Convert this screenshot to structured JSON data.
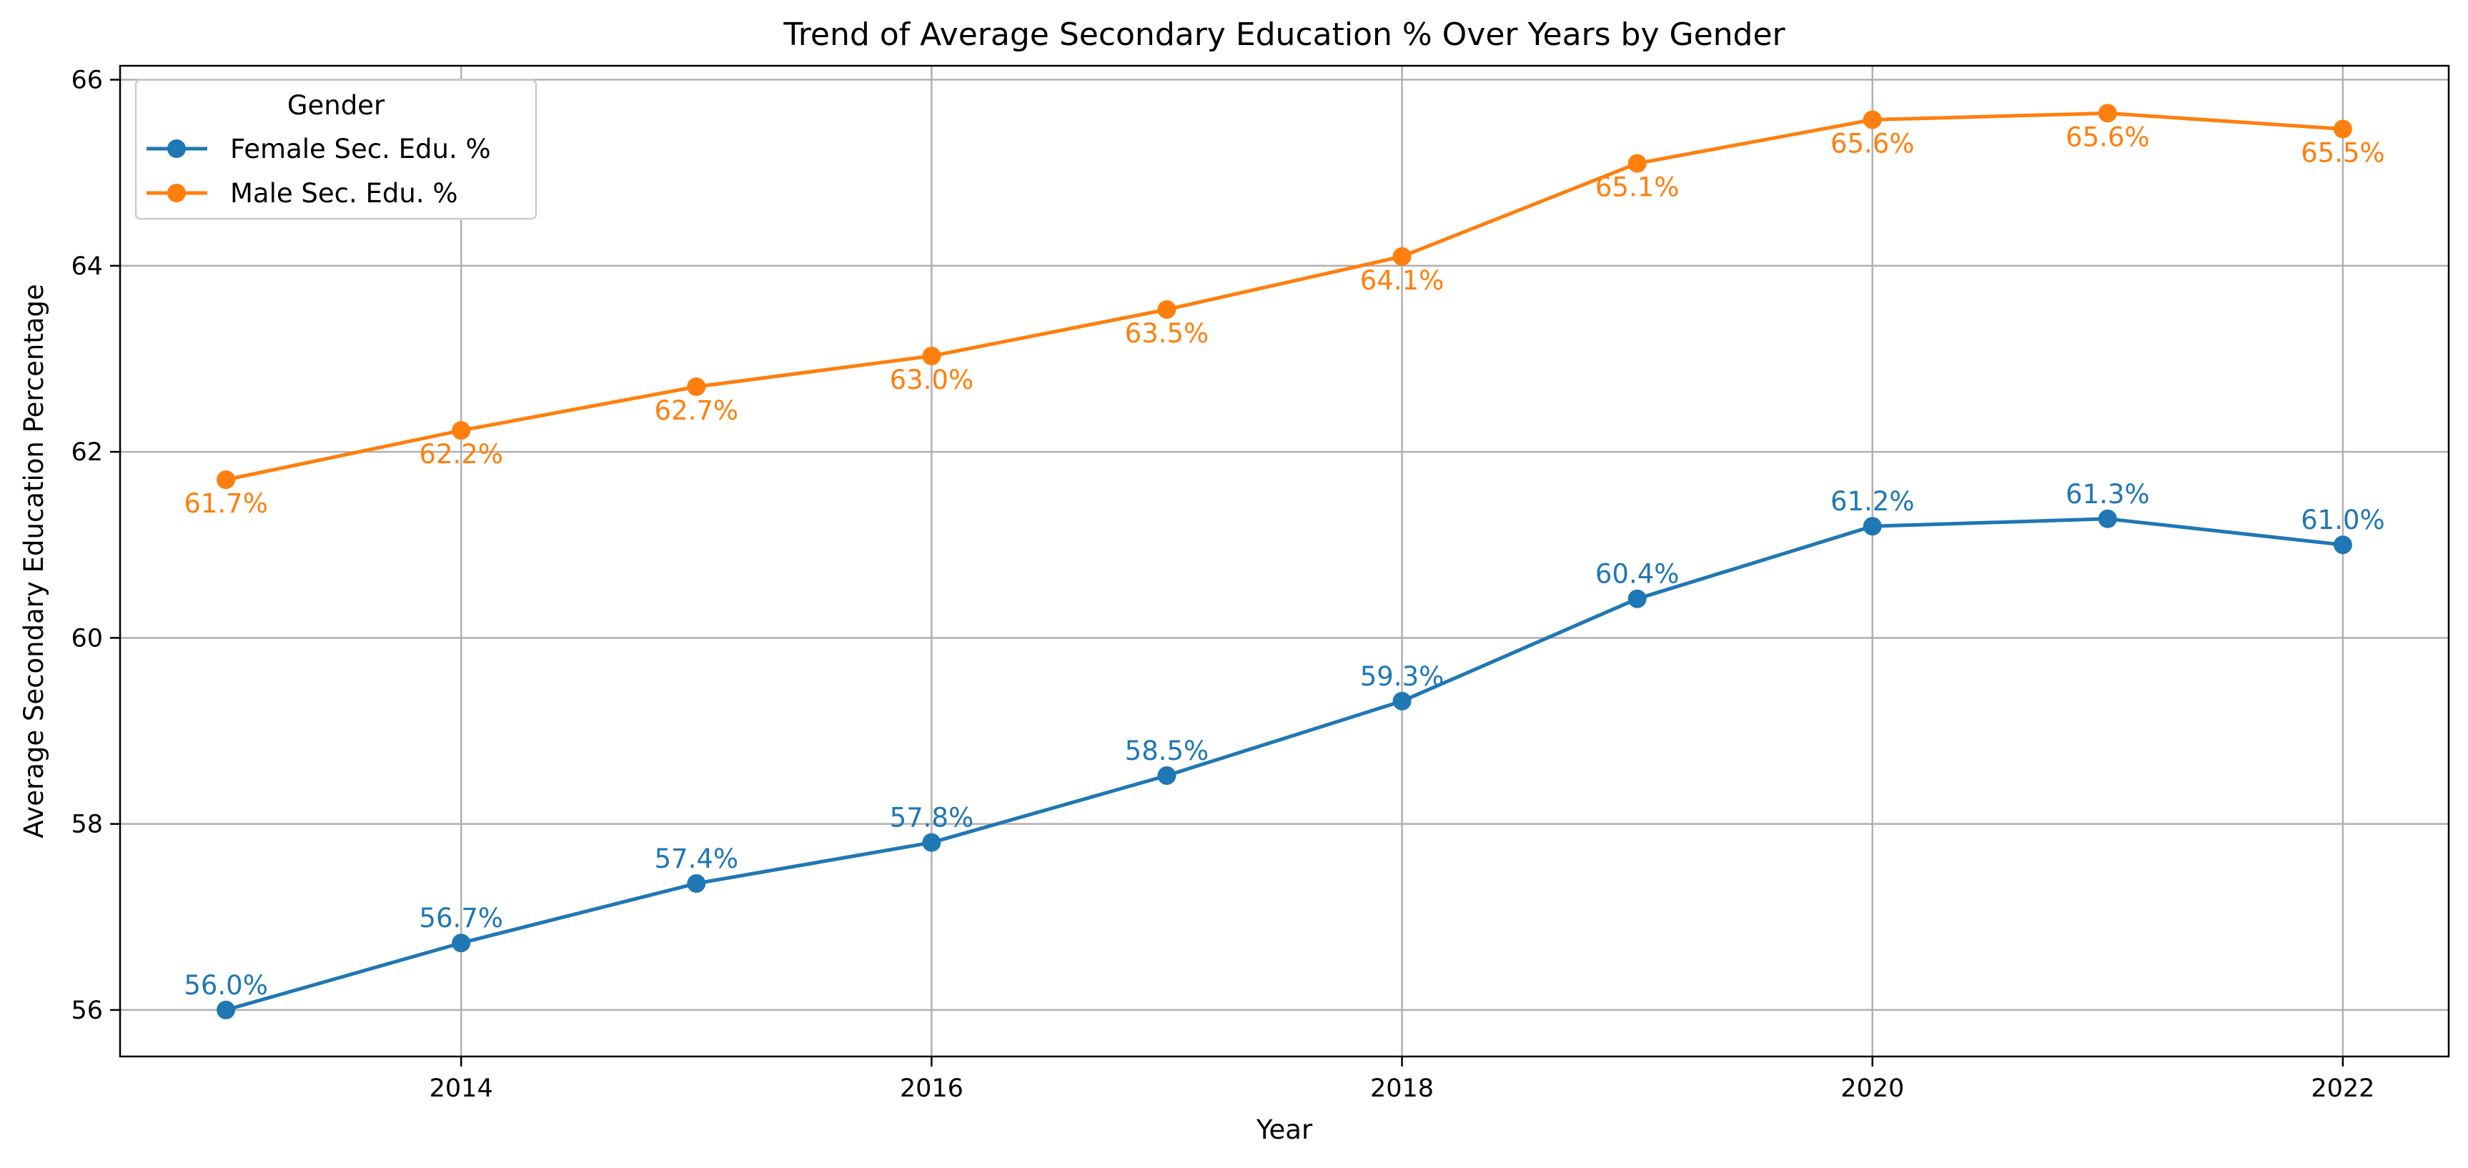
{
  "chart_data": {
    "type": "line",
    "title": "Trend of Average Secondary Education % Over Years by Gender",
    "xlabel": "Year",
    "ylabel": "Average Secondary Education Percentage",
    "x": [
      2013,
      2014,
      2015,
      2016,
      2017,
      2018,
      2019,
      2020,
      2021,
      2022
    ],
    "xticks": [
      2014,
      2016,
      2018,
      2020,
      2022
    ],
    "yticks": [
      56,
      58,
      60,
      62,
      64,
      66
    ],
    "xlim": [
      2012.55,
      2022.45
    ],
    "ylim": [
      55.5,
      66.15
    ],
    "grid": true,
    "legend": {
      "title": "Gender",
      "placement": "top-left"
    },
    "series": [
      {
        "name": "Female Sec. Edu. %",
        "color": "#1f77b4",
        "values": [
          56.0,
          56.72,
          57.36,
          57.8,
          58.52,
          59.32,
          60.42,
          61.2,
          61.28,
          61.0
        ],
        "labels": [
          "56.0%",
          "56.7%",
          "57.4%",
          "57.8%",
          "58.5%",
          "59.3%",
          "60.4%",
          "61.2%",
          "61.3%",
          "61.0%"
        ],
        "label_position": "above"
      },
      {
        "name": "Male Sec. Edu. %",
        "color": "#ff7f0e",
        "values": [
          61.7,
          62.23,
          62.7,
          63.03,
          63.53,
          64.1,
          65.1,
          65.57,
          65.64,
          65.47
        ],
        "labels": [
          "61.7%",
          "62.2%",
          "62.7%",
          "63.0%",
          "63.5%",
          "64.1%",
          "65.1%",
          "65.6%",
          "65.6%",
          "65.5%"
        ],
        "label_position": "below"
      }
    ]
  }
}
